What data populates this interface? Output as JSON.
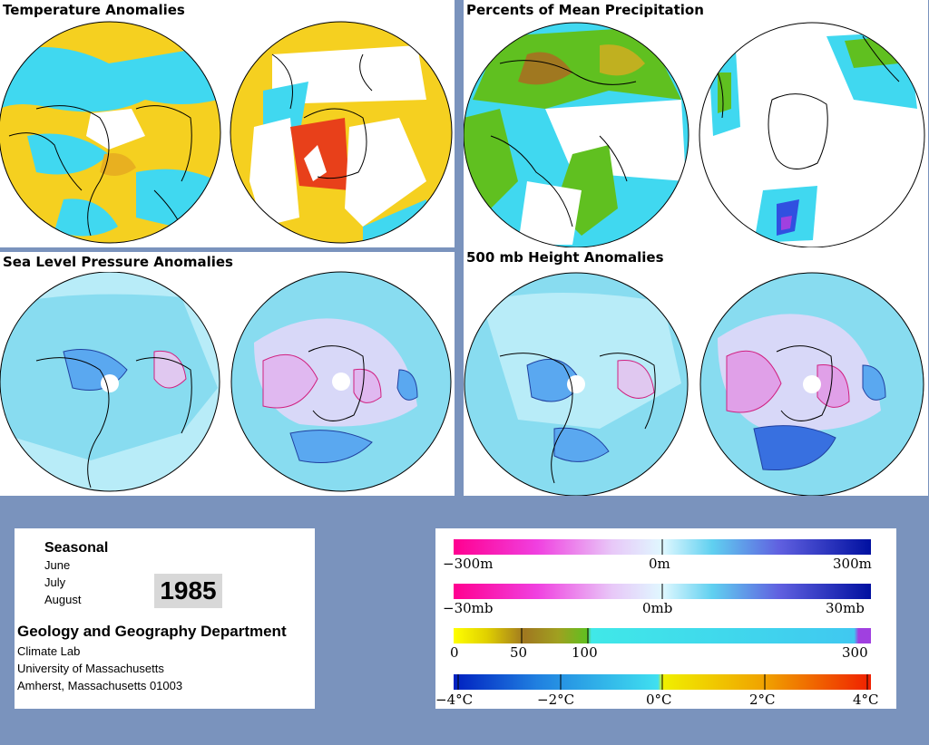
{
  "panels": {
    "temperature": {
      "title": "Temperature Anomalies"
    },
    "precipitation": {
      "title": "Percents of Mean Precipitation"
    },
    "pressure": {
      "title": "Sea Level Pressure Anomalies"
    },
    "height": {
      "title": "500 mb Height Anomalies"
    }
  },
  "info": {
    "period": "Seasonal",
    "months": [
      "June",
      "July",
      "August"
    ],
    "year": "1985",
    "department": "Geology and Geography Department",
    "address": [
      "Climate Lab",
      "University of Massachusetts",
      "Amherst, Massachusetts 01003"
    ]
  },
  "legends": {
    "height": {
      "labels": [
        "−300m",
        "0m",
        "300m"
      ]
    },
    "pressure": {
      "labels": [
        "−30mb",
        "0mb",
        "30mb"
      ]
    },
    "precip": {
      "labels": [
        "0",
        "50",
        "100",
        "300"
      ]
    },
    "temp": {
      "labels": [
        "−4°C",
        "−2°C",
        "0°C",
        "2°C",
        "4°C"
      ]
    }
  },
  "colors": {
    "background": "#7a93bd",
    "land_outline": "#000000",
    "warm": "#f5d020",
    "hot": "#e8401a",
    "cool": "#40d8f0",
    "pale_blue": "#b8ecf8",
    "negative_anomaly": "#3870e0",
    "positive_anomaly": "#e0a0e8",
    "wet": "#60c020",
    "dry": "#a07820"
  }
}
